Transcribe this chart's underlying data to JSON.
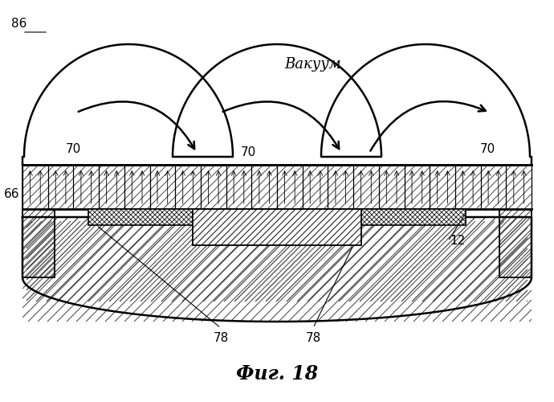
{
  "title": "Фиг. 18",
  "vacuum_label": "Вакуум",
  "label_86": "86",
  "label_66": "66",
  "label_70_list": [
    "70",
    "70",
    "70"
  ],
  "label_78_list": [
    "78",
    "78"
  ],
  "label_12": "12",
  "bg_color": "#ffffff",
  "line_color": "#000000"
}
